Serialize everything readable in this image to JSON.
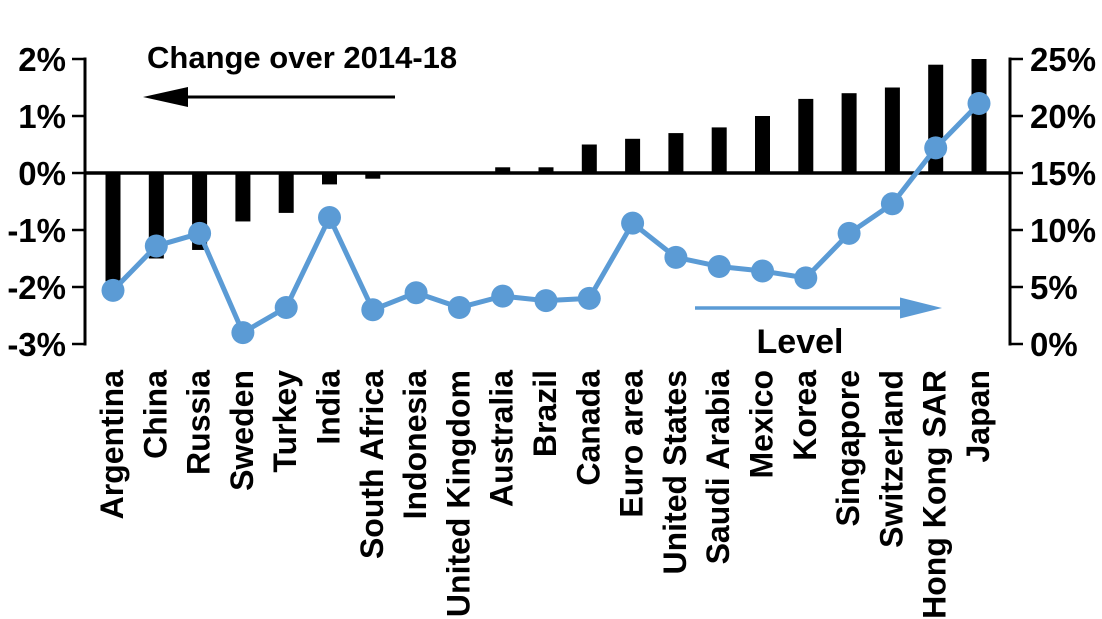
{
  "chart_data": {
    "type": "combo",
    "title_left": "Change over 2014-18",
    "title_right": "Level",
    "categories": [
      "Argentina",
      "China",
      "Russia",
      "Sweden",
      "Turkey",
      "India",
      "South Africa",
      "Indonesia",
      "United Kingdom",
      "Australia",
      "Brazil",
      "Canada",
      "Euro area",
      "United States",
      "Saudi Arabia",
      "Mexico",
      "Korea",
      "Singapore",
      "Switzerland",
      "Hong Kong SAR",
      "Japan"
    ],
    "series": [
      {
        "name": "Change over 2014-18",
        "type": "bar",
        "axis": "left",
        "color": "#000000",
        "values": [
          -1.9,
          -1.5,
          -1.35,
          -0.85,
          -0.7,
          -0.2,
          -0.1,
          0,
          0,
          0.1,
          0.1,
          0.5,
          0.6,
          0.7,
          0.8,
          1.0,
          1.3,
          1.4,
          1.5,
          1.9,
          2.0
        ]
      },
      {
        "name": "Level",
        "type": "line",
        "axis": "right",
        "color": "#5B9BD5",
        "values": [
          4.7,
          8.6,
          9.7,
          1.0,
          3.2,
          11.1,
          3.0,
          4.5,
          3.2,
          4.2,
          3.8,
          4.0,
          10.6,
          7.6,
          6.8,
          6.4,
          5.8,
          9.7,
          12.3,
          17.2,
          21.1
        ]
      }
    ],
    "left_axis": {
      "min": -3,
      "max": 2,
      "tick_values": [
        2,
        1,
        0,
        -1,
        -2,
        -3
      ],
      "tick_labels": [
        "2%",
        "1%",
        "0%",
        "-1%",
        "-2%",
        "-3%"
      ]
    },
    "right_axis": {
      "min": 0,
      "max": 25,
      "tick_values": [
        25,
        20,
        15,
        10,
        5,
        0
      ],
      "tick_labels": [
        "25%",
        "20%",
        "15%",
        "10%",
        "5%",
        "0%"
      ]
    },
    "annotations": [
      {
        "text": "Change over 2014-18",
        "arrow_direction": "left",
        "color": "#000000"
      },
      {
        "text": "Level",
        "arrow_direction": "right",
        "color": "#5B9BD5"
      }
    ],
    "grid": false,
    "legend": "none",
    "background": "#FFFFFF"
  }
}
